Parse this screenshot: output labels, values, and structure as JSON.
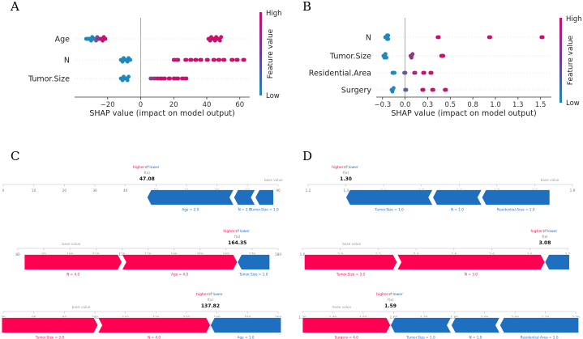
{
  "panels": {
    "A": "A",
    "B": "B",
    "C": "C",
    "D": "D"
  },
  "colors": {
    "red": "#ff0052",
    "blue": "#008bfb",
    "dark_red": "#e01557",
    "dark_blue": "#1f6fc0"
  },
  "chart_data": [
    {
      "id": "A",
      "type": "scatter",
      "subtype": "shap-beeswarm",
      "xlabel": "SHAP value (impact on model output)",
      "xlim": [
        -40,
        66
      ],
      "xticks": [
        -20,
        0,
        20,
        40,
        60
      ],
      "features": [
        "Age",
        "N",
        "Tumor.Size"
      ],
      "colorbar": {
        "label": "Feature value",
        "high": "High",
        "low": "Low"
      },
      "points": {
        "Age": [
          {
            "x": -33,
            "v": 0
          },
          {
            "x": -32,
            "v": 0
          },
          {
            "x": -31,
            "v": 0
          },
          {
            "x": -30,
            "v": 0
          },
          {
            "x": -29,
            "v": 0
          },
          {
            "x": -28,
            "v": 0.2
          },
          {
            "x": -27,
            "v": 0.3
          },
          {
            "x": -26,
            "v": 0.6
          },
          {
            "x": -25,
            "v": 0.8
          },
          {
            "x": -24,
            "v": 0.9
          },
          {
            "x": -23,
            "v": 1
          },
          {
            "x": -22,
            "v": 1
          },
          {
            "x": 41,
            "v": 1
          },
          {
            "x": 42,
            "v": 1
          },
          {
            "x": 43,
            "v": 1
          },
          {
            "x": 44,
            "v": 1
          },
          {
            "x": 45,
            "v": 1
          },
          {
            "x": 46,
            "v": 1
          },
          {
            "x": 47,
            "v": 1
          },
          {
            "x": 48,
            "v": 1
          }
        ],
        "N": [
          {
            "x": -12,
            "v": 0
          },
          {
            "x": -11,
            "v": 0
          },
          {
            "x": -10,
            "v": 0
          },
          {
            "x": -9,
            "v": 0
          },
          {
            "x": -8,
            "v": 0
          },
          {
            "x": -7,
            "v": 0
          },
          {
            "x": 20,
            "v": 0.9
          },
          {
            "x": 22,
            "v": 1
          },
          {
            "x": 27,
            "v": 1
          },
          {
            "x": 30,
            "v": 1
          },
          {
            "x": 33,
            "v": 1
          },
          {
            "x": 36,
            "v": 1
          },
          {
            "x": 40,
            "v": 1
          },
          {
            "x": 44,
            "v": 1
          },
          {
            "x": 47,
            "v": 1
          },
          {
            "x": 50,
            "v": 1
          },
          {
            "x": 55,
            "v": 1
          },
          {
            "x": 58,
            "v": 1
          },
          {
            "x": 62,
            "v": 1
          }
        ],
        "Tumor.Size": [
          {
            "x": -12,
            "v": 0
          },
          {
            "x": -11,
            "v": 0
          },
          {
            "x": -10,
            "v": 0
          },
          {
            "x": -9,
            "v": 0
          },
          {
            "x": -8,
            "v": 0
          },
          {
            "x": 6,
            "v": 0.6
          },
          {
            "x": 8,
            "v": 0.7
          },
          {
            "x": 10,
            "v": 0.9
          },
          {
            "x": 12,
            "v": 1
          },
          {
            "x": 14,
            "v": 1
          },
          {
            "x": 17,
            "v": 1
          },
          {
            "x": 20,
            "v": 1
          },
          {
            "x": 22,
            "v": 1
          },
          {
            "x": 25,
            "v": 1
          },
          {
            "x": 27,
            "v": 1
          }
        ]
      }
    },
    {
      "id": "B",
      "type": "scatter",
      "subtype": "shap-beeswarm",
      "xlabel": "SHAP value (impact on model output)",
      "xlim": [
        -0.32,
        1.62
      ],
      "xticks": [
        -0.25,
        0.0,
        0.25,
        0.5,
        0.75,
        1.0,
        1.25,
        1.5
      ],
      "features": [
        "N",
        "Tumor.Size",
        "Residential.Area",
        "Surgery"
      ],
      "colorbar": {
        "label": "Feature value",
        "high": "High",
        "low": "Low"
      },
      "points": {
        "N": [
          {
            "x": -0.22,
            "v": 0
          },
          {
            "x": -0.21,
            "v": 0
          },
          {
            "x": -0.2,
            "v": 0
          },
          {
            "x": -0.2,
            "v": 0
          },
          {
            "x": 0.36,
            "v": 1
          },
          {
            "x": 0.93,
            "v": 1
          },
          {
            "x": 1.51,
            "v": 1
          }
        ],
        "Tumor.Size": [
          {
            "x": -0.24,
            "v": 0
          },
          {
            "x": -0.23,
            "v": 0
          },
          {
            "x": -0.22,
            "v": 0
          },
          {
            "x": 0.06,
            "v": 0.7
          },
          {
            "x": 0.07,
            "v": 0.7
          },
          {
            "x": 0.4,
            "v": 1
          },
          {
            "x": 0.41,
            "v": 1
          }
        ],
        "Residential.Area": [
          {
            "x": -0.14,
            "v": 0
          },
          {
            "x": -0.13,
            "v": 0
          },
          {
            "x": -0.01,
            "v": 0.4
          },
          {
            "x": 0.1,
            "v": 0.8
          },
          {
            "x": 0.2,
            "v": 1
          },
          {
            "x": 0.28,
            "v": 1
          }
        ],
        "Surgery": [
          {
            "x": -0.15,
            "v": 0
          },
          {
            "x": -0.14,
            "v": 0
          },
          {
            "x": 0.0,
            "v": 0.3
          },
          {
            "x": 0.19,
            "v": 1
          },
          {
            "x": 0.3,
            "v": 1
          },
          {
            "x": 0.44,
            "v": 1
          }
        ]
      }
    },
    {
      "id": "C1",
      "type": "bar",
      "subtype": "shap-force",
      "xlim": [
        0,
        90
      ],
      "xticks": [
        0,
        10,
        20,
        30,
        40,
        50,
        60,
        70,
        80,
        90
      ],
      "fx": 47.08,
      "base": 88.5,
      "fx_label": "f(x)",
      "fx_text": "47.08",
      "legend": {
        "higher": "higher",
        "arrows": "⇄",
        "lower": "lower"
      },
      "base_label": "base value",
      "negative": [
        {
          "label": "Age = 2.0",
          "from": 47.08,
          "to": 75.5
        },
        {
          "label": "N = 2.0",
          "from": 75.5,
          "to": 82.5
        },
        {
          "label": "Tumor.Size = 1.0",
          "from": 82.5,
          "to": 88.5
        }
      ],
      "positive": []
    },
    {
      "id": "C2",
      "type": "bar",
      "subtype": "shap-force",
      "xlim": [
        80,
        180
      ],
      "xticks": [
        80,
        90,
        100,
        110,
        120,
        130,
        140,
        150,
        160,
        170,
        180
      ],
      "fx": 164.35,
      "base": 100.5,
      "fx_label": "f(x)",
      "fx_text": "164.35",
      "legend": {
        "higher": "higher",
        "arrows": "⇄",
        "lower": "lower"
      },
      "base_label": "base value",
      "positive": [
        {
          "label": "N = 4.0",
          "from": 82.5,
          "to": 120.0
        },
        {
          "label": "Age = 4.0",
          "from": 120.0,
          "to": 164.35
        }
      ],
      "negative": [
        {
          "label": "Tumor.Size = 1.0",
          "from": 164.35,
          "to": 176.8
        }
      ]
    },
    {
      "id": "C3",
      "type": "bar",
      "subtype": "shap-force",
      "xlim": [
        70,
        160
      ],
      "xticks": [
        70,
        80,
        90,
        100,
        110,
        120,
        130,
        140,
        150,
        160
      ],
      "fx": 137.82,
      "base": 95.5,
      "fx_label": "f(x)",
      "fx_text": "137.82",
      "legend": {
        "higher": "higher",
        "arrows": "⇄",
        "lower": "lower"
      },
      "base_label": "base value",
      "positive": [
        {
          "label": "Tumor.Size = 2.0",
          "from": 69.5,
          "to": 101.0
        },
        {
          "label": "N = 4.0",
          "from": 101.0,
          "to": 137.82
        }
      ],
      "negative": [
        {
          "label": "Age = 1.0",
          "from": 137.82,
          "to": 161.0
        }
      ]
    },
    {
      "id": "D1",
      "type": "bar",
      "subtype": "shap-force",
      "xlim": [
        1.2,
        1.9
      ],
      "xticks": [
        1.2,
        1.3,
        1.4,
        1.5,
        1.6,
        1.7,
        1.8,
        1.9
      ],
      "fx": 1.3,
      "base": 1.84,
      "fx_label": "f(x)",
      "fx_text": "1.30",
      "legend": {
        "higher": "higher",
        "arrows": "⇄",
        "lower": "lower"
      },
      "base_label": "base value",
      "negative": [
        {
          "label": "Tumor.Size = 1.0",
          "from": 1.3,
          "to": 1.53
        },
        {
          "label": "N = 1.0",
          "from": 1.53,
          "to": 1.66
        },
        {
          "label": "Residential.Area = 1.0",
          "from": 1.66,
          "to": 1.84
        }
      ],
      "positive": []
    },
    {
      "id": "D2",
      "type": "bar",
      "subtype": "shap-force",
      "xlim": [
        1.8,
        3.2
      ],
      "xticks": [
        1.8,
        2.0,
        2.2,
        2.4,
        2.6,
        2.8,
        3.0,
        3.2
      ],
      "fx": 3.08,
      "base": 2.06,
      "fx_label": "f(x)",
      "fx_text": "3.08",
      "legend": {
        "higher": "higher",
        "arrows": "⇄",
        "lower": "lower"
      },
      "base_label": "base value",
      "positive": [
        {
          "label": "Tumor.Size = 3.0",
          "from": 1.81,
          "to": 2.3
        },
        {
          "label": "N = 3.0",
          "from": 2.3,
          "to": 3.08
        }
      ],
      "negative": [
        {
          "label": "",
          "from": 3.08,
          "to": 3.21
        }
      ]
    },
    {
      "id": "D3",
      "type": "bar",
      "subtype": "shap-force",
      "xlim": [
        1.3,
        2.2
      ],
      "xticks": [
        1.3,
        1.4,
        1.5,
        1.6,
        1.7,
        1.8,
        1.9,
        2.0,
        2.1,
        2.2
      ],
      "fx": 1.59,
      "base": 1.43,
      "fx_label": "f(x)",
      "fx_text": "1.59",
      "legend": {
        "higher": "higher",
        "arrows": "⇄",
        "lower": "lower"
      },
      "base_label": "base value",
      "positive": [
        {
          "label": "Surgery = 4.0",
          "from": 1.3,
          "to": 1.59
        }
      ],
      "negative": [
        {
          "label": "Tumor.Size = 1.0",
          "from": 1.59,
          "to": 1.79
        },
        {
          "label": "N = 1.0",
          "from": 1.79,
          "to": 1.95
        },
        {
          "label": "Residential.Area = 2.0",
          "from": 1.95,
          "to": 2.21
        }
      ]
    }
  ]
}
